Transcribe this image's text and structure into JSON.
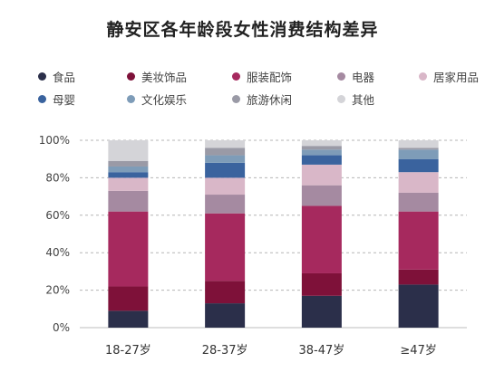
{
  "chart_data": {
    "type": "bar",
    "stacked": true,
    "title": "静安区各年龄段女性消费结构差异",
    "categories": [
      "18-27岁",
      "28-37岁",
      "38-47岁",
      "≥47岁"
    ],
    "ylim": [
      0,
      100
    ],
    "yticks": [
      "0%",
      "20%",
      "40%",
      "60%",
      "80%",
      "100%"
    ],
    "grid": true,
    "legend_position": "top",
    "series": [
      {
        "name": "食品",
        "color": "#2b2f4a",
        "values": [
          9,
          13,
          17,
          23
        ]
      },
      {
        "name": "美妆饰品",
        "color": "#7e1139",
        "values": [
          13,
          12,
          12,
          8
        ]
      },
      {
        "name": "服装配饰",
        "color": "#a6295e",
        "values": [
          40,
          36,
          36,
          31
        ]
      },
      {
        "name": "电器",
        "color": "#a58aa1",
        "values": [
          11,
          10,
          11,
          10
        ]
      },
      {
        "name": "居家用品",
        "color": "#d9b7c8",
        "values": [
          7,
          9,
          11,
          11
        ]
      },
      {
        "name": "母婴",
        "color": "#3a639e",
        "values": [
          3,
          8,
          5,
          7
        ]
      },
      {
        "name": "文化娱乐",
        "color": "#7e9cb8",
        "values": [
          3,
          4,
          3,
          5
        ]
      },
      {
        "name": "旅游休闲",
        "color": "#9a9aa6",
        "values": [
          3,
          4,
          2,
          1
        ]
      },
      {
        "name": "其他",
        "color": "#d4d4d8",
        "values": [
          11,
          4,
          3,
          4
        ]
      }
    ]
  }
}
